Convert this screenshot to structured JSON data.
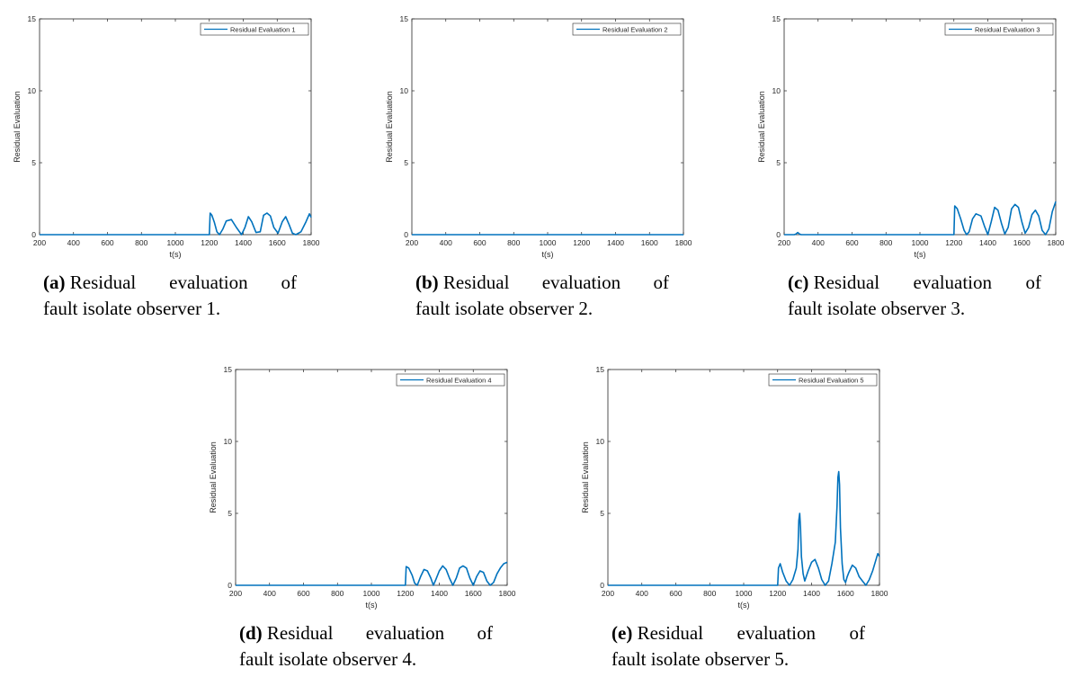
{
  "chart_data": [
    {
      "type": "line",
      "label": "(a)",
      "caption_words": [
        "Residual",
        "evaluation",
        "of"
      ],
      "caption_line2": "fault isolate observer 1.",
      "xlabel": "t(s)",
      "ylabel": "Residual Evaluation",
      "xlim": [
        200,
        1800
      ],
      "ylim": [
        0,
        15
      ],
      "xticks": [
        200,
        400,
        600,
        800,
        1000,
        1200,
        1400,
        1600,
        1800
      ],
      "yticks": [
        0,
        5,
        10,
        15
      ],
      "series": [
        {
          "name": "Residual Evaluation 1",
          "color": "#0072BD",
          "x": [
            200,
            1200,
            1205,
            1215,
            1230,
            1245,
            1260,
            1280,
            1300,
            1330,
            1360,
            1390,
            1410,
            1430,
            1450,
            1475,
            1500,
            1520,
            1540,
            1560,
            1580,
            1605,
            1630,
            1650,
            1670,
            1690,
            1710,
            1740,
            1770,
            1790,
            1800
          ],
          "y": [
            0,
            0,
            1.5,
            1.35,
            0.85,
            0.2,
            0,
            0.4,
            0.95,
            1.05,
            0.5,
            0,
            0.5,
            1.25,
            0.9,
            0.15,
            0.2,
            1.35,
            1.5,
            1.3,
            0.5,
            0.1,
            0.9,
            1.25,
            0.7,
            0.1,
            0,
            0.2,
            0.9,
            1.45,
            1.2
          ]
        }
      ]
    },
    {
      "type": "line",
      "label": "(b)",
      "caption_words": [
        "Residual",
        "evaluation",
        "of"
      ],
      "caption_line2": "fault isolate observer 2.",
      "xlabel": "t(s)",
      "ylabel": "Residual Evaluation",
      "xlim": [
        200,
        1800
      ],
      "ylim": [
        0,
        15
      ],
      "xticks": [
        200,
        400,
        600,
        800,
        1000,
        1200,
        1400,
        1600,
        1800
      ],
      "yticks": [
        0,
        5,
        10,
        15
      ],
      "series": [
        {
          "name": "Residual Evaluation 2",
          "color": "#0072BD",
          "x": [
            200,
            1800
          ],
          "y": [
            0,
            0
          ]
        }
      ]
    },
    {
      "type": "line",
      "label": "(c)",
      "caption_words": [
        "Residual",
        "evaluation",
        "of"
      ],
      "caption_line2": "fault isolate observer 3.",
      "xlabel": "t(s)",
      "ylabel": "Residual Evaluation",
      "xlim": [
        200,
        1800
      ],
      "ylim": [
        0,
        15
      ],
      "xticks": [
        200,
        400,
        600,
        800,
        1000,
        1200,
        1400,
        1600,
        1800
      ],
      "yticks": [
        0,
        5,
        10,
        15
      ],
      "series": [
        {
          "name": "Residual Evaluation 3",
          "color": "#0072BD",
          "x": [
            200,
            260,
            270,
            280,
            290,
            300,
            1200,
            1205,
            1220,
            1240,
            1260,
            1275,
            1290,
            1310,
            1330,
            1360,
            1380,
            1400,
            1420,
            1440,
            1460,
            1480,
            1500,
            1520,
            1540,
            1560,
            1580,
            1600,
            1620,
            1640,
            1660,
            1680,
            1700,
            1720,
            1740,
            1760,
            1780,
            1800
          ],
          "y": [
            0,
            0,
            0.05,
            0.15,
            0.05,
            0,
            0,
            2.0,
            1.8,
            1.1,
            0.3,
            0,
            0.2,
            1.1,
            1.45,
            1.3,
            0.6,
            0,
            0.9,
            1.9,
            1.7,
            0.8,
            0.05,
            0.5,
            1.8,
            2.1,
            1.9,
            0.9,
            0.1,
            0.5,
            1.4,
            1.7,
            1.3,
            0.3,
            0,
            0.4,
            1.6,
            2.3
          ]
        }
      ]
    },
    {
      "type": "line",
      "label": "(d)",
      "caption_words": [
        "Residual",
        "evaluation",
        "of"
      ],
      "caption_line2": "fault isolate observer 4.",
      "xlabel": "t(s)",
      "ylabel": "Residual Evaluation",
      "xlim": [
        200,
        1800
      ],
      "ylim": [
        0,
        15
      ],
      "xticks": [
        200,
        400,
        600,
        800,
        1000,
        1200,
        1400,
        1600,
        1800
      ],
      "yticks": [
        0,
        5,
        10,
        15
      ],
      "series": [
        {
          "name": "Residual Evaluation 4",
          "color": "#0072BD",
          "x": [
            200,
            1200,
            1205,
            1220,
            1240,
            1255,
            1270,
            1290,
            1310,
            1330,
            1350,
            1365,
            1380,
            1400,
            1420,
            1440,
            1460,
            1480,
            1500,
            1520,
            1540,
            1560,
            1580,
            1600,
            1620,
            1640,
            1660,
            1680,
            1700,
            1720,
            1740,
            1760,
            1780,
            1800
          ],
          "y": [
            0,
            0,
            1.3,
            1.2,
            0.7,
            0.15,
            0,
            0.6,
            1.1,
            1.0,
            0.5,
            0,
            0.4,
            1.0,
            1.35,
            1.1,
            0.5,
            0,
            0.5,
            1.2,
            1.35,
            1.2,
            0.5,
            0,
            0.6,
            1.0,
            0.9,
            0.3,
            0,
            0.2,
            0.8,
            1.2,
            1.5,
            1.6
          ]
        }
      ]
    },
    {
      "type": "line",
      "label": "(e)",
      "caption_words": [
        "Residual",
        "evaluation",
        "of"
      ],
      "caption_line2": "fault isolate observer 5.",
      "xlabel": "t(s)",
      "ylabel": "Residual Evaluation",
      "xlim": [
        200,
        1800
      ],
      "ylim": [
        0,
        15
      ],
      "xticks": [
        200,
        400,
        600,
        800,
        1000,
        1200,
        1400,
        1600,
        1800
      ],
      "yticks": [
        0,
        5,
        10,
        15
      ],
      "series": [
        {
          "name": "Residual Evaluation 5",
          "color": "#0072BD",
          "x": [
            200,
            1200,
            1205,
            1215,
            1230,
            1250,
            1270,
            1290,
            1310,
            1320,
            1325,
            1330,
            1335,
            1340,
            1350,
            1360,
            1380,
            1400,
            1420,
            1440,
            1460,
            1480,
            1500,
            1520,
            1540,
            1550,
            1555,
            1560,
            1565,
            1570,
            1580,
            1590,
            1600,
            1610,
            1620,
            1640,
            1660,
            1680,
            1700,
            1720,
            1740,
            1760,
            1780,
            1790,
            1800
          ],
          "y": [
            0,
            0,
            1.2,
            1.5,
            0.9,
            0.3,
            0,
            0.4,
            1.2,
            2.5,
            4.5,
            5.0,
            4.0,
            2.0,
            0.8,
            0.3,
            1.0,
            1.6,
            1.8,
            1.2,
            0.4,
            0,
            0.3,
            1.5,
            3.0,
            5.5,
            7.5,
            7.9,
            7.0,
            4.0,
            1.5,
            0.4,
            0.2,
            0.6,
            0.9,
            1.4,
            1.2,
            0.6,
            0.3,
            0,
            0.4,
            1.0,
            1.8,
            2.2,
            2.0
          ]
        }
      ]
    }
  ]
}
